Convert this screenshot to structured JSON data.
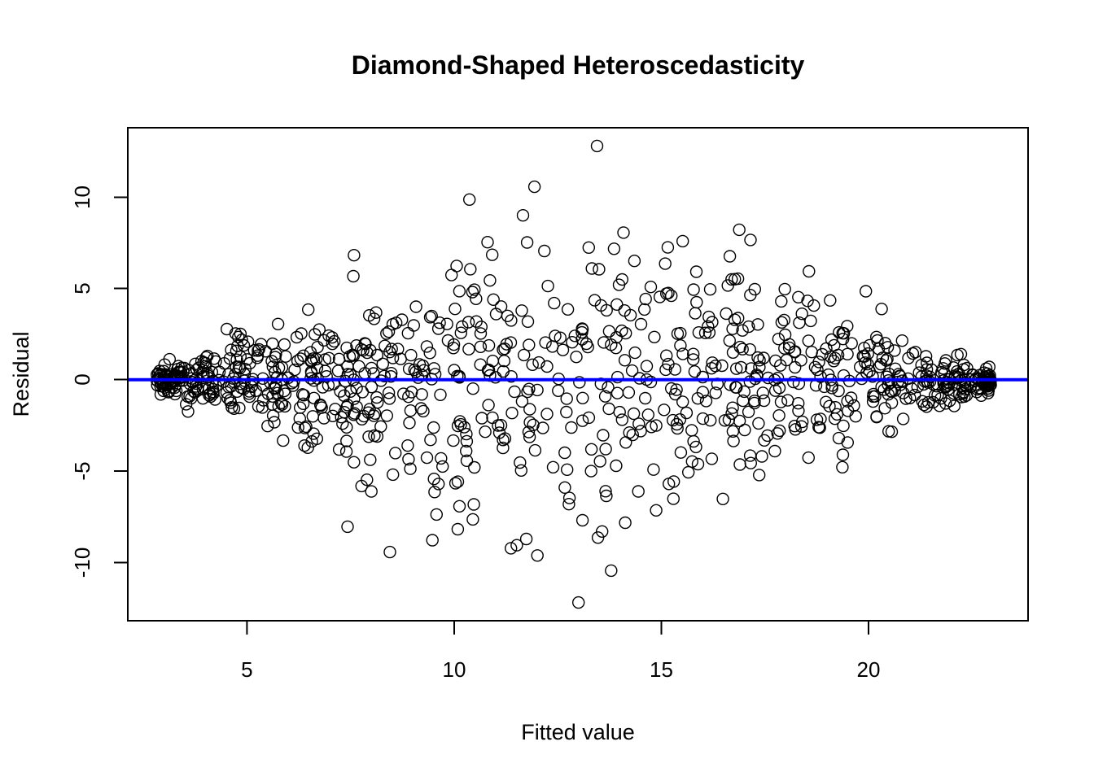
{
  "chart_data": {
    "type": "scatter",
    "title": "Diamond-Shaped Heteroscedasticity",
    "xlabel": "Fitted value",
    "ylabel": "Residual",
    "xlim": [
      2.2,
      23.9
    ],
    "ylim": [
      -13.2,
      13.8
    ],
    "x_ticks": [
      5,
      10,
      15,
      20
    ],
    "x_tick_labels": [
      "5",
      "10",
      "15",
      "20"
    ],
    "y_ticks": [
      -10,
      -5,
      0,
      5,
      10
    ],
    "y_tick_labels": [
      "-10",
      "-5",
      "0",
      "5",
      "10"
    ],
    "grid": false,
    "legend": "none",
    "reference_line": {
      "y": 0,
      "color": "#0000ff"
    },
    "point_color": "#000000",
    "points_generation": {
      "x_range": [
        2.9,
        23.0
      ],
      "n_points": 1000,
      "seed": 20240611,
      "model": "residual standard deviation rises linearly from the ends of the x range to the middle, about 0.3 at x≈3 and x≈23, about 5 at x≈13"
    }
  }
}
